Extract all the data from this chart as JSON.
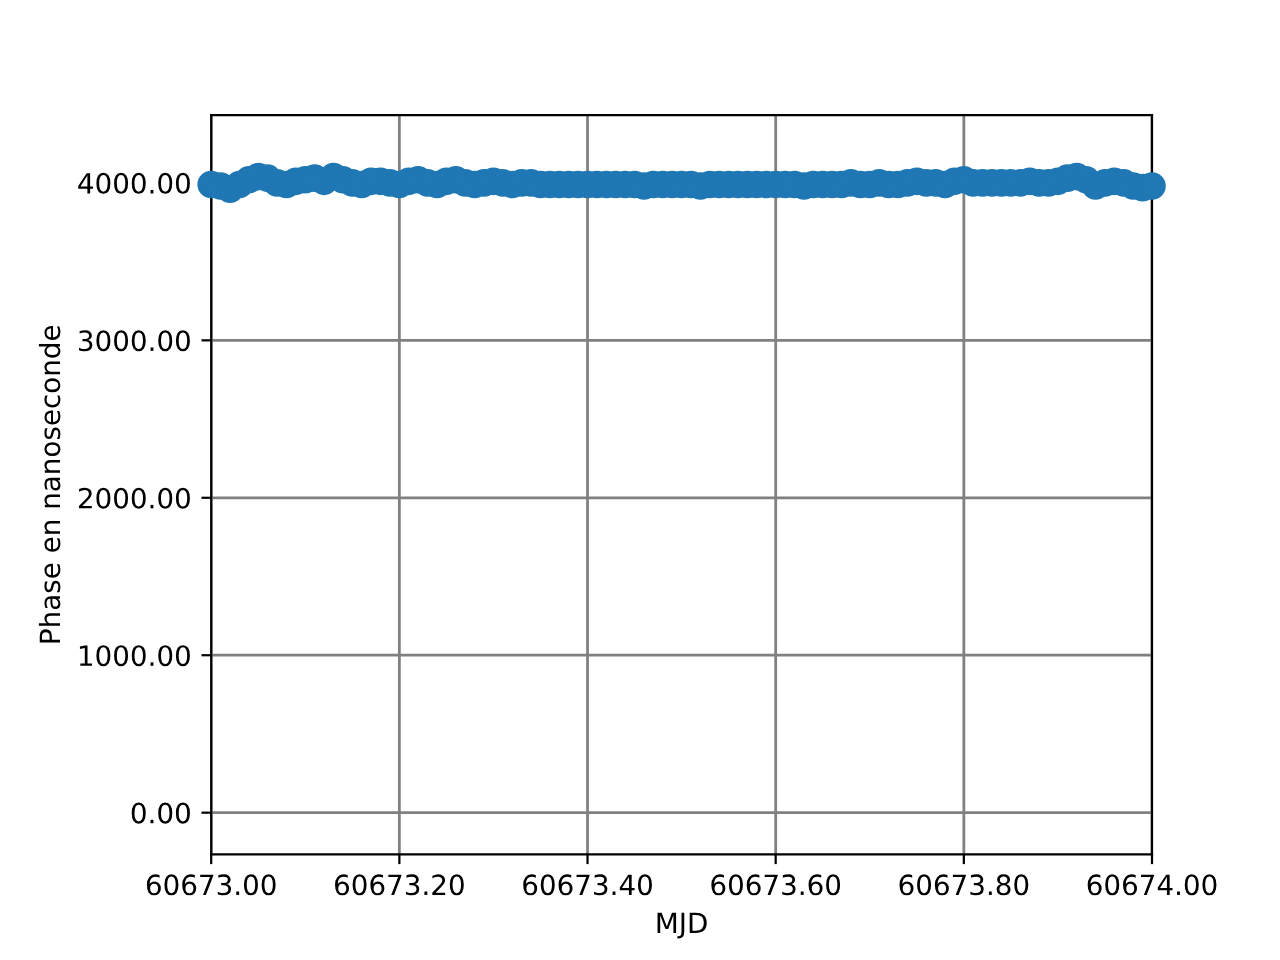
{
  "chart_data": {
    "type": "scatter",
    "xlabel": "MJD",
    "ylabel": "Phase en nanoseconde",
    "x": [
      60673.0,
      60673.01,
      60673.02,
      60673.03,
      60673.04,
      60673.05,
      60673.06,
      60673.07,
      60673.08,
      60673.09,
      60673.1,
      60673.11,
      60673.12,
      60673.13,
      60673.14,
      60673.15,
      60673.16,
      60673.17,
      60673.18,
      60673.19,
      60673.2,
      60673.21,
      60673.22,
      60673.23,
      60673.24,
      60673.25,
      60673.26,
      60673.27,
      60673.28,
      60673.29,
      60673.3,
      60673.31,
      60673.32,
      60673.33,
      60673.34,
      60673.35,
      60673.36,
      60673.37,
      60673.38,
      60673.39,
      60673.4,
      60673.41,
      60673.42,
      60673.43,
      60673.44,
      60673.45,
      60673.46,
      60673.47,
      60673.48,
      60673.49,
      60673.5,
      60673.51,
      60673.52,
      60673.53,
      60673.54,
      60673.55,
      60673.56,
      60673.57,
      60673.58,
      60673.59,
      60673.6,
      60673.61,
      60673.62,
      60673.63,
      60673.64,
      60673.65,
      60673.66,
      60673.67,
      60673.68,
      60673.69,
      60673.7,
      60673.71,
      60673.72,
      60673.73,
      60673.74,
      60673.75,
      60673.76,
      60673.77,
      60673.78,
      60673.79,
      60673.8,
      60673.81,
      60673.82,
      60673.83,
      60673.84,
      60673.85,
      60673.86,
      60673.87,
      60673.88,
      60673.89,
      60673.9,
      60673.91,
      60673.92,
      60673.93,
      60673.94,
      60673.95,
      60673.96,
      60673.97,
      60673.98,
      60673.99,
      60674.0
    ],
    "series": [
      {
        "color": "#1f77b4",
        "values": [
          3990,
          3980,
          3960,
          3990,
          4020,
          4040,
          4030,
          4000,
          3990,
          4010,
          4020,
          4030,
          4010,
          4040,
          4020,
          4000,
          3990,
          4010,
          4010,
          4000,
          3990,
          4010,
          4020,
          4000,
          3990,
          4010,
          4020,
          4000,
          3990,
          4000,
          4010,
          4000,
          3990,
          4000,
          4000,
          3990,
          3990,
          3990,
          3990,
          3990,
          3990,
          3990,
          3990,
          3990,
          3990,
          3990,
          3980,
          3990,
          3990,
          3990,
          3990,
          3990,
          3980,
          3990,
          3990,
          3990,
          3990,
          3990,
          3990,
          3990,
          3990,
          3990,
          3990,
          3980,
          3990,
          3990,
          3990,
          3990,
          4000,
          3990,
          3990,
          4000,
          3990,
          3990,
          4000,
          4010,
          4000,
          4000,
          3990,
          4010,
          4020,
          4000,
          4000,
          4000,
          4000,
          4000,
          4000,
          4010,
          4000,
          4000,
          4010,
          4030,
          4040,
          4020,
          3980,
          4000,
          4010,
          4000,
          3980,
          3970,
          3980
        ]
      }
    ],
    "marker": "circle",
    "grid": true,
    "xlim": [
      60673.0,
      60674.0
    ],
    "xticks": [
      {
        "value": 60673.0,
        "label": "60673.00"
      },
      {
        "value": 60673.2,
        "label": "60673.20"
      },
      {
        "value": 60673.4,
        "label": "60673.40"
      },
      {
        "value": 60673.6,
        "label": "60673.60"
      },
      {
        "value": 60673.8,
        "label": "60673.80"
      },
      {
        "value": 60674.0,
        "label": "60674.00"
      }
    ],
    "ylim": [
      -265,
      4430
    ],
    "yticks": [
      {
        "value": 0,
        "label": "0.00"
      },
      {
        "value": 1000,
        "label": "1000.00"
      },
      {
        "value": 2000,
        "label": "2000.00"
      },
      {
        "value": 3000,
        "label": "3000.00"
      },
      {
        "value": 4000,
        "label": "4000.00"
      }
    ]
  }
}
